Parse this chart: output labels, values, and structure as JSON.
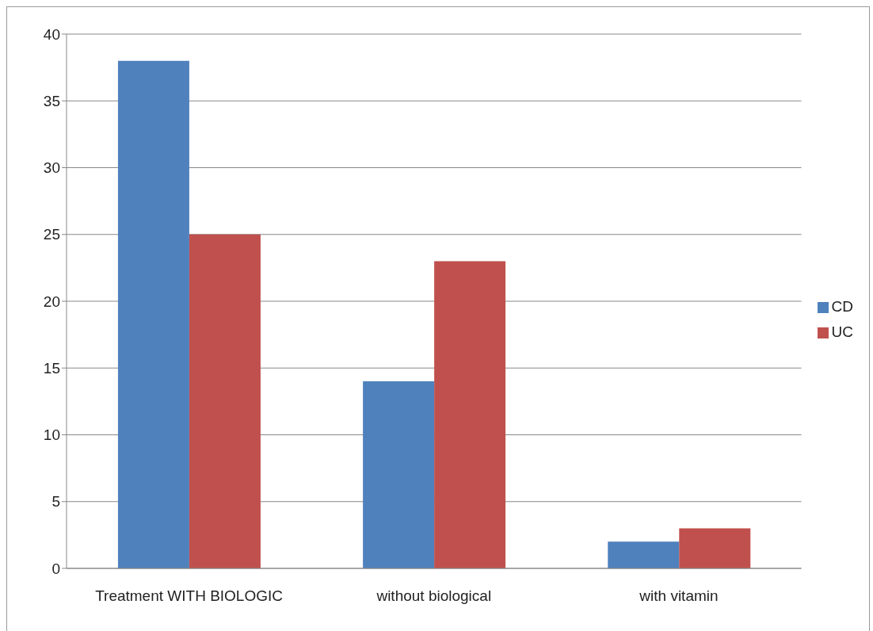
{
  "chart_data": {
    "type": "bar",
    "categories": [
      "Treatment WITH BIOLOGIC",
      "without biological",
      "with vitamin"
    ],
    "series": [
      {
        "name": "CD",
        "color": "#4f81bd",
        "values": [
          38,
          14,
          2
        ]
      },
      {
        "name": "UC",
        "color": "#c0504d",
        "values": [
          25,
          23,
          3
        ]
      }
    ],
    "ylim": [
      0,
      40
    ],
    "yticks": [
      0,
      5,
      10,
      15,
      20,
      25,
      30,
      35,
      40
    ],
    "grid": "y",
    "legend": "right"
  }
}
